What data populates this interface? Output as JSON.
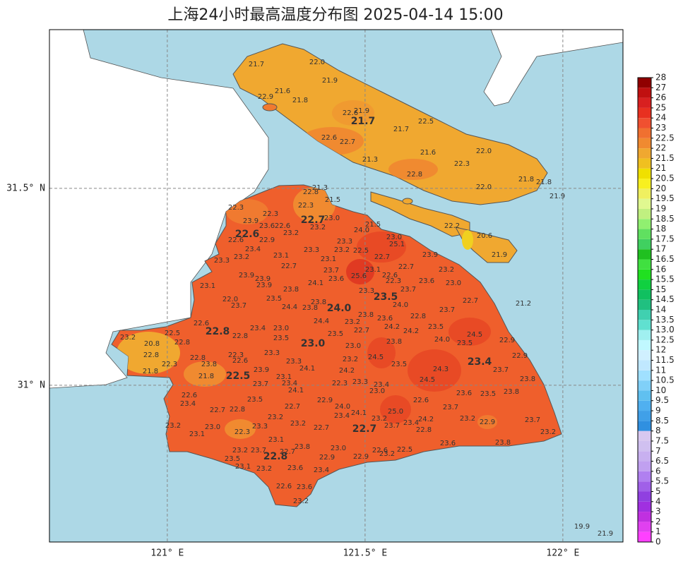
{
  "chart_data": {
    "type": "map",
    "title": "上海24小时最高温度分布图 2025-04-14 15:00",
    "xlim": [
      120.702,
      122.152
    ],
    "ylim": [
      30.602,
      31.903
    ],
    "xticks": [
      {
        "value": 121,
        "label": "121° E"
      },
      {
        "value": 121.5,
        "label": "121.5° E"
      },
      {
        "value": 122,
        "label": "122° E"
      }
    ],
    "yticks": [
      {
        "value": 31,
        "label": "31° N"
      },
      {
        "value": 31.5,
        "label": "31.5° N"
      }
    ],
    "grid": true,
    "colorbar": {
      "ticks": [
        0,
        1,
        2,
        3,
        4,
        5,
        5.5,
        6,
        6.5,
        7,
        7.5,
        8,
        8.5,
        9,
        9.5,
        10,
        10.5,
        11,
        11.5,
        12,
        12.5,
        {
          "value": 13,
          "label": "13.0"
        },
        13.5,
        14,
        14.5,
        15,
        15.5,
        16,
        16.5,
        17,
        17.5,
        18,
        18.5,
        19,
        19.5,
        20,
        20.5,
        21,
        21.5,
        22,
        22.5,
        23,
        24,
        25,
        26,
        27,
        28
      ],
      "colors": [
        "#ff40ff",
        "#e040f0",
        "#c030e0",
        "#a030e0",
        "#9040e0",
        "#a060e8",
        "#b080f0",
        "#c0a0f0",
        "#c8b0f0",
        "#d0c0f0",
        "#d8c8f0",
        "#3090e0",
        "#40a0e8",
        "#50b0f0",
        "#60c0f0",
        "#80d0f8",
        "#a0e0ff",
        "#c0e8ff",
        "#d0f0ff",
        "#c0f8ff",
        "#a0f0f0",
        "#60e0d0",
        "#40d0b0",
        "#20c080",
        "#10c060",
        "#10d040",
        "#20e020",
        "#40e040",
        "#20c020",
        "#40d060",
        "#60e060",
        "#90f070",
        "#c0f080",
        "#e0f890",
        "#f0f060",
        "#f8f020",
        "#f0e000",
        "#f0c020",
        "#f0a830",
        "#f08a30",
        "#f07030",
        "#f05030",
        "#e83020",
        "#d82020",
        "#c01010",
        "#900000"
      ]
    },
    "stations": {
      "values": [
        21.7,
        22.0,
        21.9,
        22.9,
        21.6,
        21.8,
        22.6,
        21.9,
        21.7,
        21.7,
        22.5,
        22.6,
        22.7,
        21.6,
        22.0,
        21.3,
        22.3,
        22.8,
        21.8,
        21.8,
        22.0,
        21.9,
        22.2,
        20.6,
        21.9,
        21.3,
        22.8,
        21.5,
        22.3,
        22.3,
        22.3,
        22.7,
        23.0,
        23.9,
        23.6,
        22.6,
        23.2,
        22.6,
        23.2,
        21.5,
        24.0,
        23.0,
        25.1,
        22.6,
        22.9,
        23.3,
        23.4,
        23.3,
        23.2,
        22.5,
        23.9,
        22.7,
        23.2,
        23.1,
        23.1,
        22.7,
        22.7,
        23.7,
        23.1,
        23.2,
        23.3,
        23.9,
        23.9,
        23.6,
        25.6,
        22.6,
        22.3,
        23.6,
        23.0,
        24.1,
        23.1,
        23.9,
        23.8,
        23.3,
        23.5,
        23.7,
        23.5,
        22.0,
        23.7,
        24.4,
        23.8,
        23.8,
        24.0,
        24.0,
        23.7,
        22.7,
        21.2,
        23.8,
        22.8,
        22.6,
        22.8,
        23.4,
        23.0,
        24.4,
        23.2,
        23.6,
        24.2,
        24.2,
        23.5,
        22.7,
        24.5,
        22.5,
        23.2,
        22.8,
        23.5,
        23.5,
        24.0,
        23.5,
        22.9,
        20.8,
        22.8,
        23.0,
        23.8,
        23.0,
        22.3,
        23.3,
        22.8,
        24.5,
        23.2,
        22.9,
        22.8,
        22.6,
        23.9,
        23.8,
        22.3,
        24.1,
        23.3,
        24.2,
        23.4,
        23.7,
        21.8,
        21.8,
        22.5,
        23.1,
        24.3,
        23.5,
        24.5,
        23.7,
        23.4,
        22.3,
        23.3,
        23.4,
        23.8,
        23.0,
        24.1,
        23.6,
        23.5,
        23.8,
        22.6,
        23.4,
        23.5,
        22.9,
        22.6,
        24.0,
        23.7,
        22.7,
        22.7,
        22.8,
        25.0,
        23.4,
        24.1,
        23.2,
        23.2,
        24.2,
        23.2,
        22.9,
        23.7,
        23.2,
        23.0,
        23.3,
        23.2,
        22.7,
        22.7,
        23.7,
        23.4,
        22.8,
        23.2,
        23.1,
        22.3,
        23.1,
        23.8,
        23.0,
        23.6,
        23.8,
        23.2,
        23.7,
        22.7,
        22.8,
        22.6,
        22.5,
        23.5,
        22.9,
        22.9,
        23.2,
        23.1,
        23.2,
        23.6,
        23.4,
        22.6,
        23.6,
        23.2,
        19.9,
        21.9
      ],
      "value_labels": [
        "21.7",
        "22.0",
        "21.9",
        "22.9",
        "21.6",
        "21.8",
        "22.6",
        "21.9",
        "21.7",
        "21.7",
        "22.5",
        "22.6",
        "22.7",
        "21.6",
        "22.0",
        "21.3",
        "22.3",
        "22.8",
        "21.8",
        "21.8",
        "22.0",
        "21.9",
        "22.2",
        "20.6",
        "21.9",
        "21.3",
        "22.8",
        "21.5",
        "22.3",
        "22.3",
        "22.3",
        "22.7",
        "23.0",
        "23.9",
        "23.6",
        "22.6",
        "23.2",
        "22.6",
        "23.2",
        "21.5",
        "24.0",
        "23.0",
        "25.1",
        "22.6",
        "22.9",
        "23.3",
        "23.4",
        "23.3",
        "23.2",
        "22.5",
        "23.9",
        "22.7",
        "23.2",
        "23.1",
        "23.1",
        "22.7",
        "22.7",
        "23.7",
        "23.1",
        "23.2",
        "23.3",
        "23.9",
        "23.9",
        "23.6",
        "25.6",
        "22.6",
        "22.3",
        "23.6",
        "23.0",
        "24.1",
        "23.1",
        "23.9",
        "23.8",
        "23.3",
        "23.5",
        "23.7",
        "23.5",
        "22.0",
        "23.7",
        "24.4",
        "23.8",
        "23.8",
        "24.0",
        "24.0",
        "23.7",
        "22.7",
        "21.2",
        "23.8",
        "22.8",
        "22.6",
        "22.8",
        "23.4",
        "23.0",
        "24.4",
        "23.2",
        "23.6",
        "24.2",
        "24.2",
        "23.5",
        "22.7",
        "24.5",
        "22.5",
        "23.2",
        "22.8",
        "23.5",
        "23.5",
        "24.0",
        "23.5",
        "22.9",
        "20.8",
        "22.8",
        "23.0",
        "23.8",
        "23.0",
        "22.3",
        "23.3",
        "22.8",
        "24.5",
        "23.2",
        "22.9",
        "22.8",
        "22.6",
        "23.9",
        "23.8",
        "22.3",
        "24.1",
        "23.3",
        "24.2",
        "23.4",
        "23.7",
        "21.8",
        "21.8",
        "22.5",
        "23.1",
        "24.3",
        "23.5",
        "24.5",
        "23.7",
        "23.4",
        "22.3",
        "23.3",
        "23.4",
        "23.8",
        "23.0",
        "24.1",
        "23.6",
        "23.5",
        "23.8",
        "22.6",
        "23.4",
        "23.5",
        "22.9",
        "22.6",
        "24.0",
        "23.7",
        "22.7",
        "22.7",
        "22.8",
        "25.0",
        "23.4",
        "24.1",
        "23.2",
        "23.2",
        "24.2",
        "23.2",
        "22.9",
        "23.7",
        "23.2",
        "23.0",
        "23.3",
        "23.2",
        "22.7",
        "22.7",
        "23.7",
        "23.4",
        "22.8",
        "23.2",
        "23.1",
        "22.3",
        "23.1",
        "23.8",
        "23.0",
        "23.6",
        "23.8",
        "23.2",
        "23.7",
        "22.7",
        "22.8",
        "22.6",
        "22.5",
        "23.5",
        "22.9",
        "22.9",
        "23.2",
        "23.1",
        "23.2",
        "23.6",
        "23.4",
        "22.6",
        "23.6",
        "23.2",
        "19.9",
        "21.9"
      ]
    }
  }
}
